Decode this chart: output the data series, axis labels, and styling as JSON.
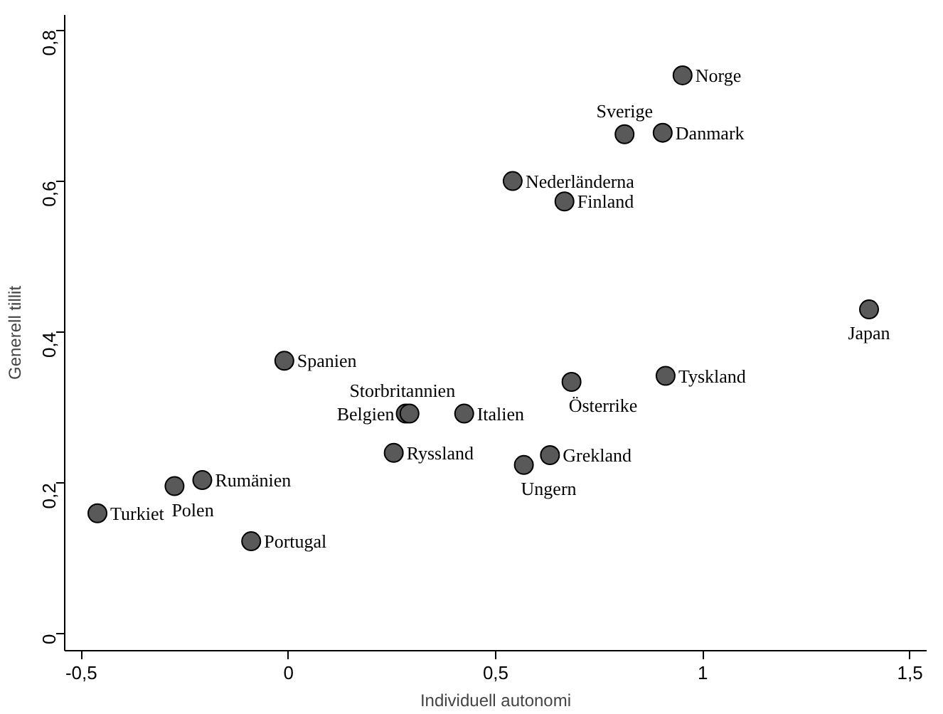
{
  "chart_data": {
    "type": "scatter",
    "xlabel": "Individuell autonomi",
    "ylabel": "Generell tillit",
    "x": [
      -0.461,
      -0.275,
      -0.208,
      -0.09,
      -0.01,
      0.283,
      0.292,
      0.424,
      0.254,
      0.568,
      0.631,
      0.683,
      0.91,
      1.401,
      0.951,
      0.811,
      0.903,
      0.541,
      0.666
    ],
    "values": [
      0.16,
      0.196,
      0.204,
      0.123,
      0.362,
      0.292,
      0.292,
      0.292,
      0.24,
      0.224,
      0.237,
      0.334,
      0.342,
      0.43,
      0.74,
      0.662,
      0.664,
      0.6,
      0.573
    ],
    "value_labels": [
      "Turkiet",
      "Polen",
      "Rumänien",
      "Portugal",
      "Spanien",
      "Belgien",
      "Storbritannien",
      "Italien",
      "Ryssland",
      "Ungern",
      "Grekland",
      "Österrike",
      "Tyskland",
      "Japan",
      "Norge",
      "Sverige",
      "Danmark",
      "Nederländerna",
      "Finland"
    ],
    "color": "#595959",
    "marker": "circle",
    "grid": false,
    "xlim": [
      -0.54,
      1.54
    ],
    "ylim": [
      -0.022,
      0.82
    ],
    "xticks": [
      {
        "value": -0.5,
        "label": "-0,5"
      },
      0,
      {
        "value": 0.5,
        "label": "0,5"
      },
      1,
      {
        "value": 1.5,
        "label": "1,5"
      }
    ],
    "yticks": [
      0,
      {
        "value": 0.2,
        "label": "0,2"
      },
      {
        "value": 0.4,
        "label": "0,4"
      },
      {
        "value": 0.6,
        "label": "0,6"
      },
      {
        "value": 0.8,
        "label": "0,8"
      }
    ]
  }
}
